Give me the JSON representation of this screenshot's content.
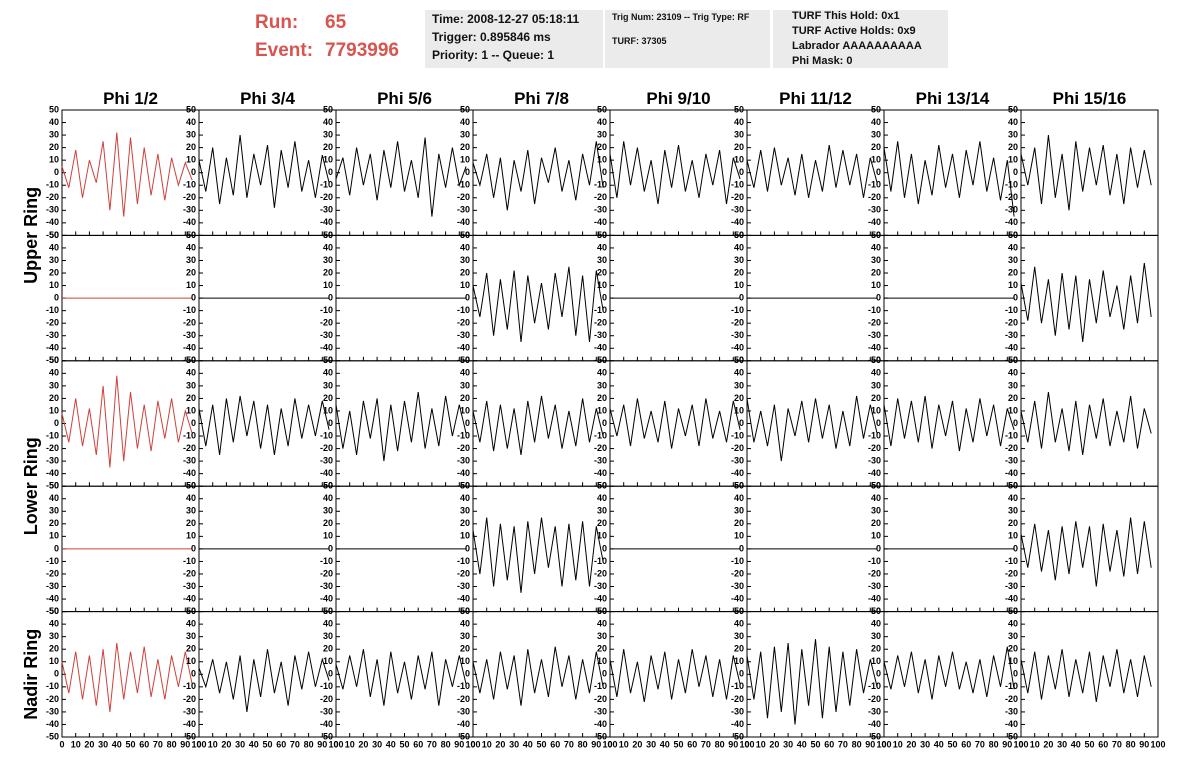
{
  "header": {
    "run_label": "Run:",
    "run": "65",
    "event_label": "Event:",
    "event": "7793996",
    "box1": [
      "Time: 2008-12-27 05:18:11",
      "Trigger: 0.895846 ms",
      "Priority: 1 -- Queue: 1"
    ],
    "box2": [
      "Trig Num: 23109 -- Trig Type: RF",
      "TURF: 37305"
    ],
    "box3": [
      "TURF This Hold: 0x1",
      "TURF Active Holds: 0x9",
      "Labrador AAAAAAAAAA",
      "Phi Mask: 0"
    ]
  },
  "chart_data": {
    "type": "line",
    "column_titles": [
      "Phi 1/2",
      "Phi 3/4",
      "Phi 5/6",
      "Phi 7/8",
      "Phi 9/10",
      "Phi 11/12",
      "Phi 13/14",
      "Phi 15/16"
    ],
    "row_titles": [
      "Upper Ring",
      "Lower Ring",
      "Nadir Ring"
    ],
    "ylim": [
      -50,
      50
    ],
    "yticks": [
      -50,
      -40,
      -30,
      -20,
      -10,
      0,
      10,
      20,
      30,
      40,
      50
    ],
    "xlim": [
      0,
      100
    ],
    "xticks": [
      0,
      10,
      20,
      30,
      40,
      50,
      60,
      70,
      80,
      90,
      100
    ],
    "x": [
      0,
      5,
      10,
      15,
      20,
      25,
      30,
      35,
      40,
      45,
      50,
      55,
      60,
      65,
      70,
      75,
      80,
      85,
      90,
      95
    ],
    "panels": [
      [
        {
          "color": "#d0403a",
          "values": [
            5,
            -12,
            18,
            -20,
            10,
            -8,
            25,
            -30,
            32,
            -35,
            28,
            -25,
            20,
            -18,
            15,
            -22,
            12,
            -10,
            8,
            -6
          ]
        },
        {
          "color": "#000000",
          "values": [
            10,
            -15,
            20,
            -25,
            12,
            -18,
            30,
            -20,
            15,
            -10,
            22,
            -28,
            18,
            -12,
            25,
            -15,
            10,
            -20,
            14,
            -8
          ]
        },
        {
          "color": "#000000",
          "values": [
            -5,
            12,
            -18,
            20,
            -10,
            15,
            -22,
            18,
            -12,
            25,
            -15,
            10,
            -20,
            28,
            -35,
            15,
            -12,
            20,
            -10,
            5
          ]
        },
        {
          "color": "#000000",
          "values": [
            8,
            -10,
            15,
            -20,
            12,
            -30,
            10,
            -15,
            18,
            -25,
            12,
            -8,
            20,
            -15,
            10,
            -22,
            15,
            -10,
            25,
            -12
          ]
        },
        {
          "color": "#000000",
          "values": [
            15,
            -20,
            25,
            -10,
            20,
            -15,
            10,
            -25,
            18,
            -12,
            22,
            -15,
            10,
            -20,
            15,
            -10,
            18,
            -25,
            12,
            -5
          ]
        },
        {
          "color": "#000000",
          "values": [
            10,
            -12,
            18,
            -15,
            20,
            -10,
            12,
            -18,
            15,
            -20,
            10,
            -15,
            22,
            -12,
            18,
            -10,
            15,
            -20,
            12,
            -8
          ]
        },
        {
          "color": "#000000",
          "values": [
            20,
            -15,
            25,
            -20,
            15,
            -25,
            10,
            -18,
            22,
            -12,
            15,
            -20,
            18,
            -10,
            25,
            -15,
            12,
            -22,
            10,
            -35
          ]
        },
        {
          "color": "#000000",
          "values": [
            15,
            -10,
            20,
            -25,
            30,
            -20,
            15,
            -30,
            25,
            -15,
            20,
            -10,
            22,
            -18,
            15,
            -25,
            20,
            -12,
            18,
            -10
          ]
        }
      ],
      [
        {
          "color": "#d0403a",
          "values": [
            0,
            0,
            0,
            0,
            0,
            0,
            0,
            0,
            0,
            0,
            0,
            0,
            0,
            0,
            0,
            0,
            0,
            0,
            0,
            0
          ]
        },
        {
          "color": "#000000",
          "values": [
            0,
            0,
            0,
            0,
            0,
            0,
            0,
            0,
            0,
            0,
            0,
            0,
            0,
            0,
            0,
            0,
            0,
            0,
            0,
            0
          ]
        },
        {
          "color": "#000000",
          "values": [
            0,
            0,
            0,
            0,
            0,
            0,
            0,
            0,
            0,
            0,
            0,
            0,
            0,
            0,
            0,
            0,
            0,
            0,
            0,
            0
          ]
        },
        {
          "color": "#000000",
          "values": [
            10,
            -15,
            20,
            -30,
            15,
            -25,
            22,
            -35,
            18,
            -20,
            12,
            -25,
            20,
            -15,
            25,
            -30,
            18,
            -35,
            22,
            -10
          ]
        },
        {
          "color": "#000000",
          "values": [
            0,
            0,
            0,
            0,
            0,
            0,
            0,
            0,
            0,
            0,
            0,
            0,
            0,
            0,
            0,
            0,
            0,
            0,
            0,
            0
          ]
        },
        {
          "color": "#000000",
          "values": [
            0,
            0,
            0,
            0,
            0,
            0,
            0,
            0,
            0,
            0,
            0,
            0,
            0,
            0,
            0,
            0,
            0,
            0,
            0,
            0
          ]
        },
        {
          "color": "#000000",
          "values": [
            0,
            0,
            0,
            0,
            0,
            0,
            0,
            0,
            0,
            0,
            0,
            0,
            0,
            0,
            0,
            0,
            0,
            0,
            0,
            0
          ]
        },
        {
          "color": "#000000",
          "values": [
            12,
            -18,
            25,
            -20,
            15,
            -30,
            20,
            -25,
            18,
            -35,
            15,
            -20,
            22,
            -15,
            10,
            -25,
            18,
            -20,
            28,
            -15
          ]
        }
      ],
      [
        {
          "color": "#d0403a",
          "values": [
            8,
            -15,
            20,
            -18,
            12,
            -25,
            30,
            -35,
            38,
            -30,
            25,
            -20,
            15,
            -22,
            18,
            -12,
            20,
            -15,
            10,
            -8
          ]
        },
        {
          "color": "#000000",
          "values": [
            12,
            -18,
            15,
            -25,
            20,
            -15,
            22,
            -10,
            18,
            -20,
            15,
            -25,
            12,
            -18,
            20,
            -12,
            15,
            -10,
            18,
            -5
          ]
        },
        {
          "color": "#000000",
          "values": [
            15,
            -20,
            10,
            -25,
            18,
            -12,
            20,
            -30,
            15,
            -22,
            18,
            -15,
            25,
            -20,
            12,
            -18,
            22,
            -10,
            15,
            -8
          ]
        },
        {
          "color": "#000000",
          "values": [
            10,
            -15,
            18,
            -22,
            15,
            -20,
            12,
            -25,
            18,
            -15,
            22,
            -12,
            15,
            -20,
            10,
            -18,
            20,
            -15,
            12,
            -10
          ]
        },
        {
          "color": "#000000",
          "values": [
            12,
            -10,
            15,
            -18,
            20,
            -12,
            10,
            -15,
            18,
            -20,
            12,
            -10,
            15,
            -18,
            20,
            -12,
            10,
            -15,
            18,
            -5
          ]
        },
        {
          "color": "#000000",
          "values": [
            20,
            -15,
            10,
            -18,
            15,
            -30,
            12,
            -10,
            18,
            -15,
            20,
            -12,
            15,
            -20,
            10,
            -18,
            22,
            -12,
            15,
            -8
          ]
        },
        {
          "color": "#000000",
          "values": [
            15,
            -18,
            20,
            -12,
            18,
            -15,
            22,
            -20,
            15,
            -10,
            18,
            -22,
            12,
            -15,
            20,
            -10,
            15,
            -18,
            12,
            -5
          ]
        },
        {
          "color": "#000000",
          "values": [
            10,
            -15,
            18,
            -20,
            25,
            -15,
            12,
            -22,
            18,
            -25,
            15,
            -12,
            20,
            -18,
            10,
            -15,
            22,
            -20,
            12,
            -8
          ]
        }
      ],
      [
        {
          "color": "#d0403a",
          "values": [
            0,
            0,
            0,
            0,
            0,
            0,
            0,
            0,
            0,
            0,
            0,
            0,
            0,
            0,
            0,
            0,
            0,
            0,
            0,
            0
          ]
        },
        {
          "color": "#000000",
          "values": [
            0,
            0,
            0,
            0,
            0,
            0,
            0,
            0,
            0,
            0,
            0,
            0,
            0,
            0,
            0,
            0,
            0,
            0,
            0,
            0
          ]
        },
        {
          "color": "#000000",
          "values": [
            0,
            0,
            0,
            0,
            0,
            0,
            0,
            0,
            0,
            0,
            0,
            0,
            0,
            0,
            0,
            0,
            0,
            0,
            0,
            0
          ]
        },
        {
          "color": "#000000",
          "values": [
            15,
            -20,
            25,
            -30,
            20,
            -25,
            18,
            -35,
            22,
            -20,
            25,
            -15,
            18,
            -30,
            20,
            -25,
            22,
            -30,
            18,
            -10
          ]
        },
        {
          "color": "#000000",
          "values": [
            0,
            0,
            0,
            0,
            0,
            0,
            0,
            0,
            0,
            0,
            0,
            0,
            0,
            0,
            0,
            0,
            0,
            0,
            0,
            0
          ]
        },
        {
          "color": "#000000",
          "values": [
            0,
            0,
            0,
            0,
            0,
            0,
            0,
            0,
            0,
            0,
            0,
            0,
            0,
            0,
            0,
            0,
            0,
            0,
            0,
            0
          ]
        },
        {
          "color": "#000000",
          "values": [
            0,
            0,
            0,
            0,
            0,
            0,
            0,
            0,
            0,
            0,
            0,
            0,
            0,
            0,
            0,
            0,
            0,
            0,
            0,
            0
          ]
        },
        {
          "color": "#000000",
          "values": [
            12,
            -15,
            20,
            -18,
            15,
            -25,
            18,
            -20,
            22,
            -15,
            18,
            -30,
            20,
            -18,
            15,
            -22,
            25,
            -20,
            22,
            -15
          ]
        }
      ],
      [
        {
          "color": "#d0403a",
          "values": [
            10,
            -15,
            18,
            -20,
            15,
            -25,
            20,
            -30,
            25,
            -20,
            18,
            -15,
            22,
            -18,
            12,
            -20,
            15,
            -10,
            18,
            -8
          ]
        },
        {
          "color": "#000000",
          "values": [
            5,
            -10,
            12,
            -15,
            10,
            -20,
            15,
            -30,
            12,
            -18,
            20,
            -15,
            10,
            -25,
            15,
            -12,
            18,
            -10,
            12,
            -5
          ]
        },
        {
          "color": "#000000",
          "values": [
            8,
            -12,
            15,
            -10,
            20,
            -18,
            12,
            -25,
            18,
            -15,
            10,
            -20,
            15,
            -12,
            18,
            -25,
            12,
            -10,
            15,
            -8
          ]
        },
        {
          "color": "#000000",
          "values": [
            10,
            -15,
            12,
            -20,
            18,
            -12,
            15,
            -25,
            20,
            -15,
            12,
            -18,
            22,
            -10,
            15,
            -20,
            12,
            -15,
            18,
            -10
          ]
        },
        {
          "color": "#000000",
          "values": [
            12,
            -18,
            20,
            -15,
            10,
            -22,
            15,
            -12,
            18,
            -20,
            12,
            -15,
            20,
            -10,
            15,
            -18,
            12,
            -20,
            15,
            -8
          ]
        },
        {
          "color": "#000000",
          "values": [
            15,
            -20,
            18,
            -35,
            22,
            -30,
            25,
            -40,
            20,
            -25,
            28,
            -35,
            22,
            -30,
            18,
            -25,
            20,
            -15,
            12,
            -10
          ]
        },
        {
          "color": "#000000",
          "values": [
            10,
            -12,
            15,
            -10,
            18,
            -15,
            12,
            -20,
            15,
            -10,
            18,
            -12,
            10,
            -15,
            12,
            -18,
            15,
            -10,
            22,
            -12
          ]
        },
        {
          "color": "#000000",
          "values": [
            12,
            -15,
            18,
            -20,
            15,
            -12,
            20,
            -18,
            12,
            -15,
            18,
            -22,
            15,
            -10,
            20,
            -15,
            12,
            -18,
            15,
            -10
          ]
        }
      ]
    ]
  }
}
